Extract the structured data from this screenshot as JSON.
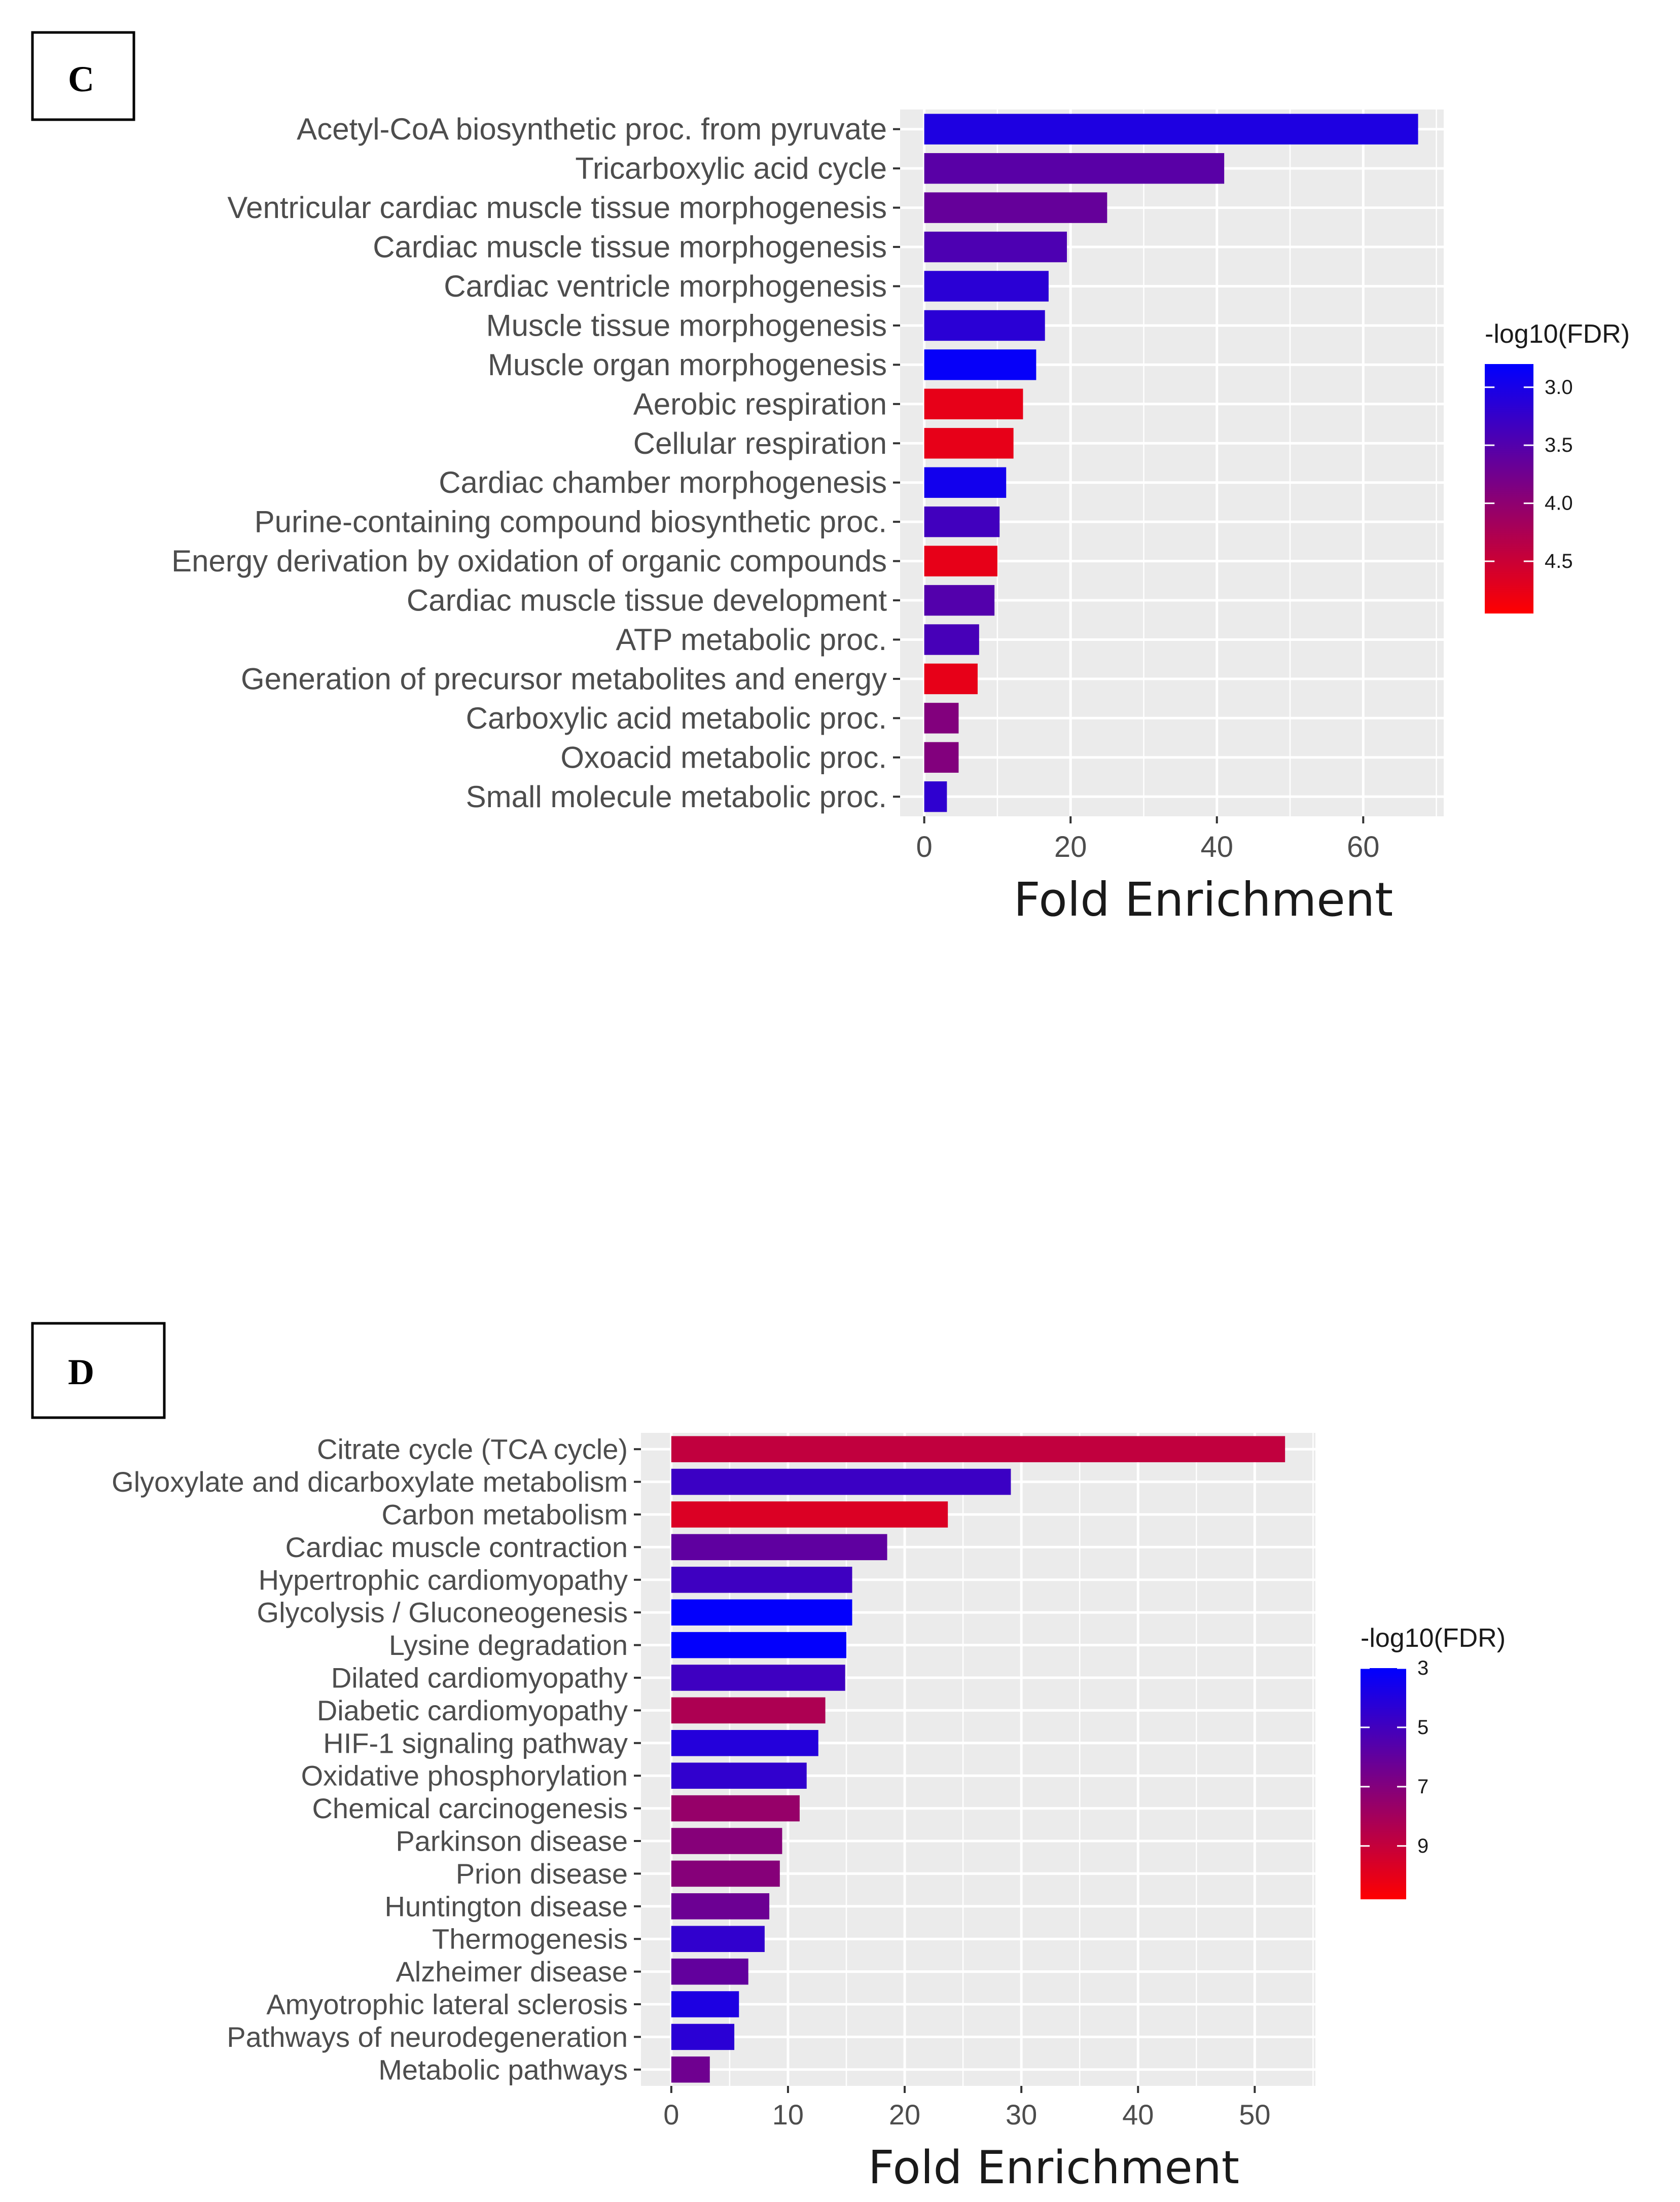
{
  "chart_data": [
    {
      "type": "bar",
      "orientation": "horizontal",
      "panel_label": "C",
      "categories": [
        "Acetyl-CoA biosynthetic proc. from pyruvate",
        "Tricarboxylic acid cycle",
        "Ventricular cardiac muscle tissue morphogenesis",
        "Cardiac muscle tissue morphogenesis",
        "Cardiac ventricle morphogenesis",
        "Muscle tissue morphogenesis",
        "Muscle organ morphogenesis",
        "Aerobic respiration",
        "Cellular respiration",
        "Cardiac chamber morphogenesis",
        "Purine-containing compound biosynthetic proc.",
        "Energy derivation by oxidation of organic compounds",
        "Cardiac muscle tissue development",
        "ATP metabolic proc.",
        "Generation of precursor metabolites and energy",
        "Carboxylic acid metabolic proc.",
        "Oxoacid metabolic proc.",
        "Small molecule metabolic proc."
      ],
      "values": [
        67.5,
        41,
        25,
        19.5,
        17,
        16.5,
        15.3,
        13.5,
        12.2,
        11.2,
        10.3,
        10,
        9.6,
        7.5,
        7.3,
        4.7,
        4.7,
        3.1
      ],
      "color_values": [
        3.05,
        3.55,
        3.65,
        3.45,
        3.15,
        3.15,
        2.85,
        4.75,
        4.75,
        2.95,
        3.35,
        4.75,
        3.5,
        3.4,
        4.75,
        3.9,
        3.9,
        3.2
      ],
      "xlabel": "Fold Enrichment",
      "xlim": [
        -3.3,
        71
      ],
      "xticks": [
        0,
        20,
        40,
        60
      ],
      "xtick_labels": [
        "0",
        "20",
        "40",
        "60"
      ],
      "legend": {
        "title": "-log10(FDR)",
        "range": [
          2.8,
          4.95
        ],
        "low_color": "#0000ff",
        "high_color": "#ff0000",
        "ticks": [
          3.0,
          3.5,
          4.0,
          4.5
        ],
        "tick_labels": [
          "3.0",
          "3.5",
          "4.0",
          "4.5"
        ]
      }
    },
    {
      "type": "bar",
      "orientation": "horizontal",
      "panel_label": "D",
      "categories": [
        "Citrate cycle (TCA cycle)",
        "Glyoxylate and dicarboxylate metabolism",
        "Carbon metabolism",
        "Cardiac muscle contraction",
        "Hypertrophic cardiomyopathy",
        "Glycolysis / Gluconeogenesis",
        "Lysine degradation",
        "Dilated cardiomyopathy",
        "Diabetic cardiomyopathy",
        "HIF-1 signaling pathway",
        "Oxidative phosphorylation",
        "Chemical carcinogenesis",
        "Parkinson disease",
        "Prion disease",
        "Huntington disease",
        "Thermogenesis",
        "Alzheimer disease",
        "Amyotrophic lateral sclerosis",
        "Pathways of neurodegeneration",
        "Metabolic pathways"
      ],
      "values": [
        52.6,
        29.1,
        23.7,
        18.5,
        15.5,
        15.5,
        15.0,
        14.9,
        13.2,
        12.6,
        11.6,
        11.0,
        9.5,
        9.3,
        8.4,
        8.0,
        6.6,
        5.8,
        5.4,
        3.3
      ],
      "color_values": [
        8.9,
        4.8,
        9.7,
        5.9,
        4.9,
        3.1,
        3.1,
        4.9,
        8.3,
        4.1,
        4.5,
        7.6,
        7.1,
        7.1,
        6.3,
        4.5,
        6.0,
        3.9,
        4.3,
        6.4
      ],
      "xlabel": "Fold Enrichment",
      "xlim": [
        -2.6,
        55.2
      ],
      "xticks": [
        0,
        10,
        20,
        30,
        40,
        50
      ],
      "xtick_labels": [
        "0",
        "10",
        "20",
        "30",
        "40",
        "50"
      ],
      "legend": {
        "title": "-log10(FDR)",
        "range": [
          3,
          10.8
        ],
        "low_color": "#0000ff",
        "high_color": "#ff0000",
        "ticks": [
          3,
          5,
          7,
          9
        ],
        "tick_labels": [
          "3",
          "5",
          "7",
          "9"
        ]
      }
    }
  ]
}
